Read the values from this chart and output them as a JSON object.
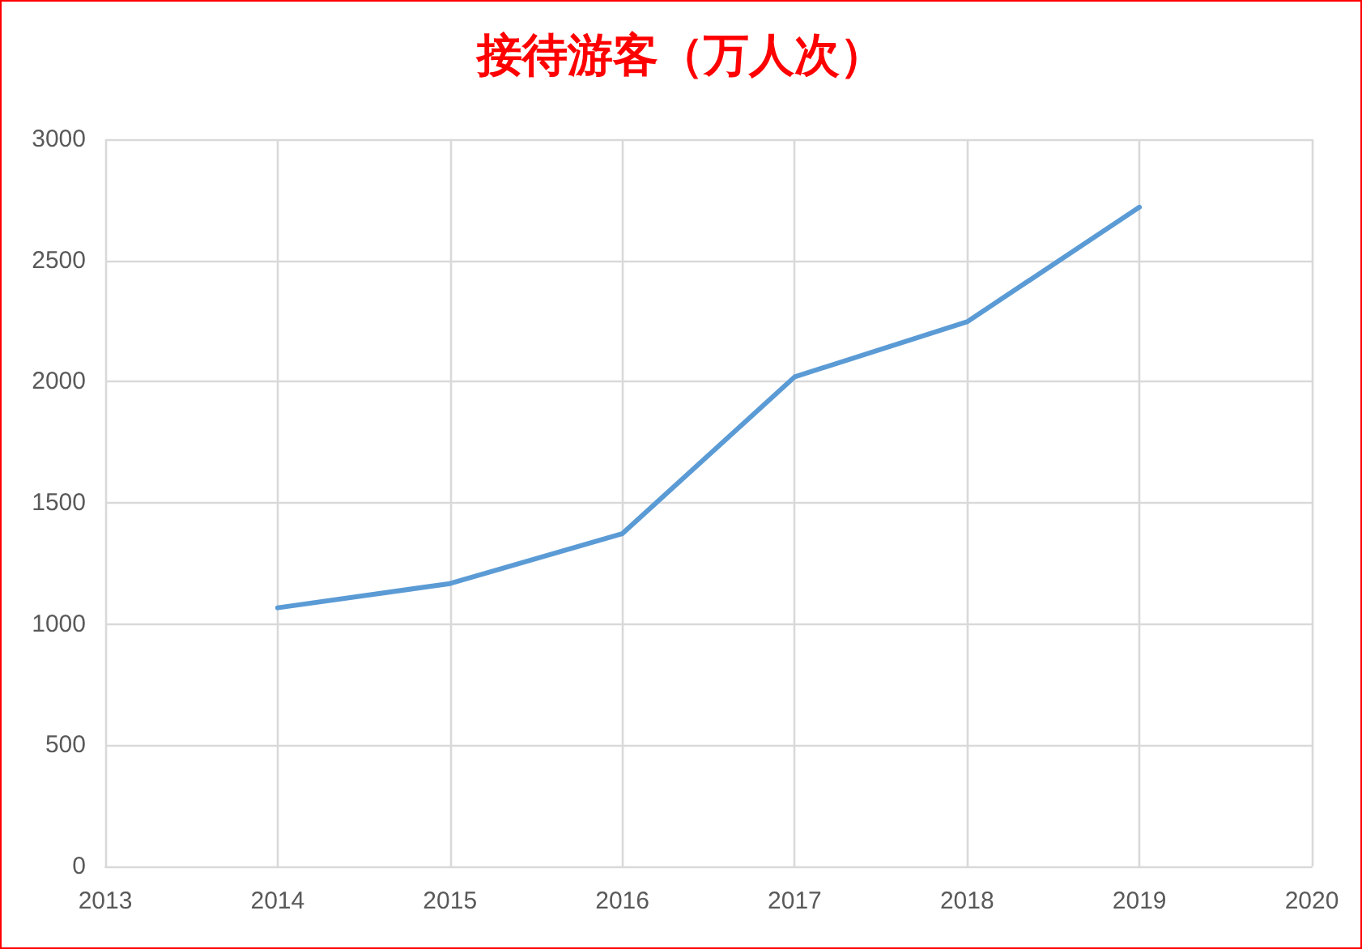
{
  "chart_data": {
    "type": "line",
    "title": "接待游客（万人次）",
    "x": [
      2014,
      2015,
      2016,
      2017,
      2018,
      2019
    ],
    "series": [
      {
        "color": "#5b9bd5",
        "values": [
          1067,
          1167,
          1373,
          2020,
          2247,
          2720
        ]
      }
    ],
    "xlim": [
      2013,
      2020
    ],
    "xticks": [
      2013,
      2014,
      2015,
      2016,
      2017,
      2018,
      2019,
      2020
    ],
    "ylim": [
      0,
      3000
    ],
    "yticks": [
      0,
      500,
      1000,
      1500,
      2000,
      2500,
      3000
    ],
    "grid": true,
    "marker": "none",
    "line_style": "solid"
  }
}
